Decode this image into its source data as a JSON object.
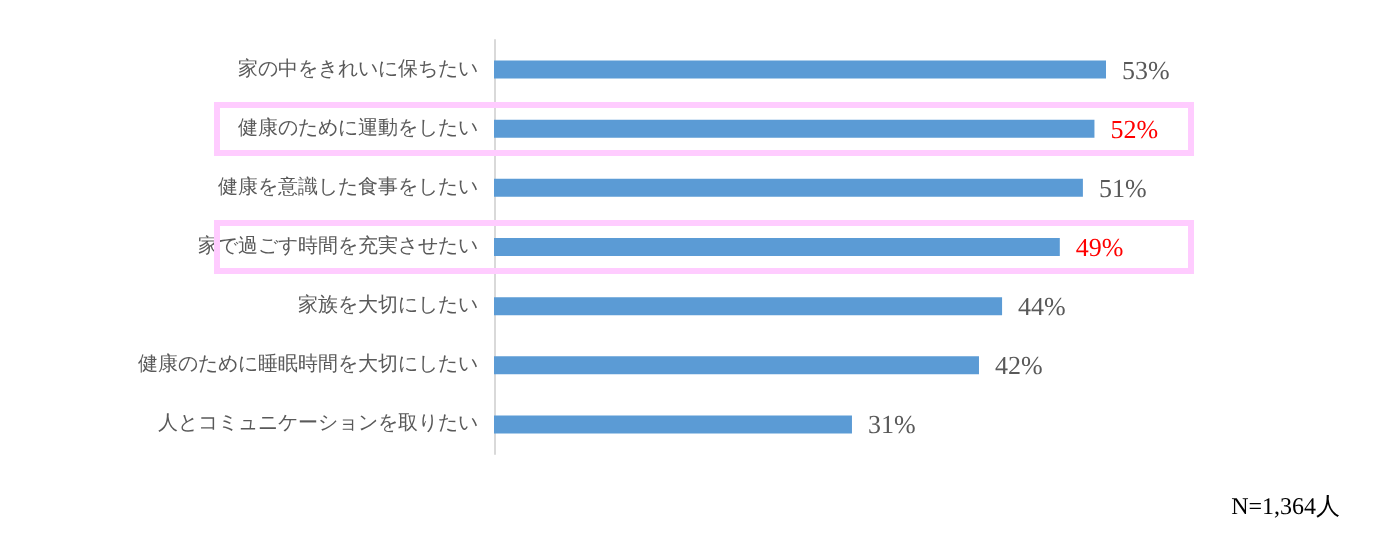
{
  "chart_data": {
    "type": "bar",
    "orientation": "horizontal",
    "categories": [
      "家の中をきれいに保ちたい",
      "健康のために運動をしたい",
      "健康を意識した食事をしたい",
      "家で過ごす時間を充実させたい",
      "家族を大切にしたい",
      "健康のために睡眠時間を大切にしたい",
      "人とコミュニケーションを取りたい"
    ],
    "values": [
      53,
      52,
      51,
      49,
      44,
      42,
      31
    ],
    "value_labels": [
      "53%",
      "52%",
      "51%",
      "49%",
      "44%",
      "42%",
      "31%"
    ],
    "color": "#5b9bd5",
    "annotations": [
      "N=1,364人"
    ],
    "grid": false
  }
}
